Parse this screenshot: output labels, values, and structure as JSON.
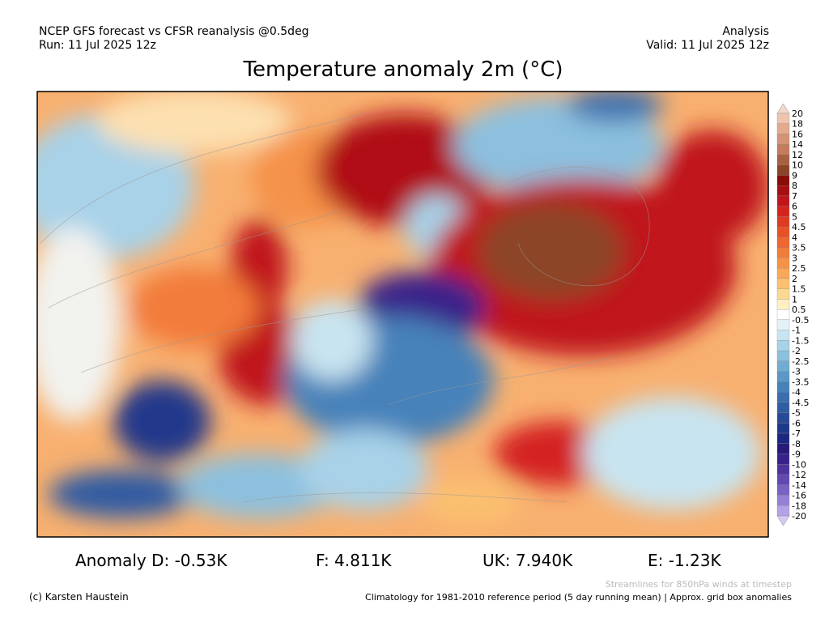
{
  "header": {
    "left": [
      "NCEP GFS forecast vs CFSR reanalysis @0.5deg",
      "Run: 11 Jul 2025 12z"
    ],
    "right": [
      "Analysis",
      "Valid: 11 Jul 2025 12z"
    ],
    "title": "Temperature anomaly 2m (°C)"
  },
  "colorbar": {
    "labels": [
      "20",
      "18",
      "16",
      "14",
      "12",
      "10",
      "9",
      "8",
      "7",
      "6",
      "5",
      "4.5",
      "4",
      "3.5",
      "3",
      "2.5",
      "2",
      "1.5",
      "1",
      "0.5",
      "-0.5",
      "-1",
      "-1.5",
      "-2",
      "-2.5",
      "-3",
      "-3.5",
      "-4",
      "-4.5",
      "-5",
      "-6",
      "-7",
      "-8",
      "-9",
      "-10",
      "-12",
      "-14",
      "-16",
      "-18",
      "-20"
    ],
    "colors": [
      "#f5d8cc",
      "#eec3b0",
      "#e3a98f",
      "#d49377",
      "#c47b5e",
      "#a8603e",
      "#8c4528",
      "#8b0a0a",
      "#a80f12",
      "#c0161a",
      "#d42420",
      "#e03a22",
      "#e85028",
      "#ee6630",
      "#f27c3a",
      "#f59248",
      "#f8a858",
      "#fbc070",
      "#fdd890",
      "#fef0c0",
      "#ffffff",
      "#e4f2f8",
      "#c8e4f0",
      "#a8d2e8",
      "#8cc0de",
      "#72acd2",
      "#5a98c6",
      "#4682ba",
      "#3a6eae",
      "#305ca2",
      "#284a96",
      "#20388a",
      "#1a2880",
      "#281a7a",
      "#3a228a",
      "#4e349c",
      "#6248b0",
      "#7a62c4",
      "#9680d6",
      "#b4a2e6",
      "#d4c8f4"
    ]
  },
  "stats": [
    "Anomaly D: -0.53K",
    "F: 4.811K",
    "UK: 7.940K",
    "E: -1.23K"
  ],
  "footer": {
    "credit": "(c) Karsten Haustein",
    "streamlines": "Streamlines for 850hPa winds at timestep",
    "climatology": "Climatology for 1981-2010 reference period (5 day running mean) | Approx. grid box anomalies"
  }
}
